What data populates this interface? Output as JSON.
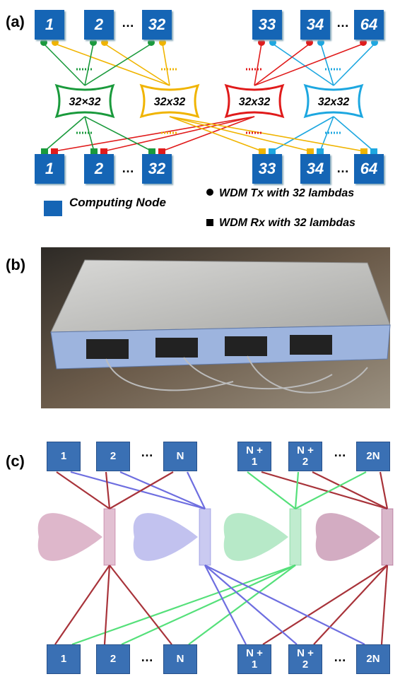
{
  "panel_a": {
    "label": "(a)",
    "top_nodes": [
      "1",
      "2",
      "32",
      "33",
      "34",
      "64"
    ],
    "bottom_nodes": [
      "1",
      "2",
      "32",
      "33",
      "34",
      "64"
    ],
    "ellipsis": "…",
    "switches": [
      "32×32",
      "32x32",
      "32x32",
      "32x32"
    ],
    "legend": {
      "node": "Computing Node",
      "tx": "WDM Tx with 32 lambdas",
      "rx": "WDM Rx with 32 lambdas"
    }
  },
  "panel_b": {
    "label": "(b)"
  },
  "panel_c": {
    "label": "(c)",
    "top_nodes": [
      "1",
      "2",
      "N",
      "N + 1",
      "N + 2",
      "2N"
    ],
    "bottom_nodes": [
      "1",
      "2",
      "N",
      "N + 1",
      "N + 2",
      "2N"
    ],
    "ellipsis": "…"
  }
}
